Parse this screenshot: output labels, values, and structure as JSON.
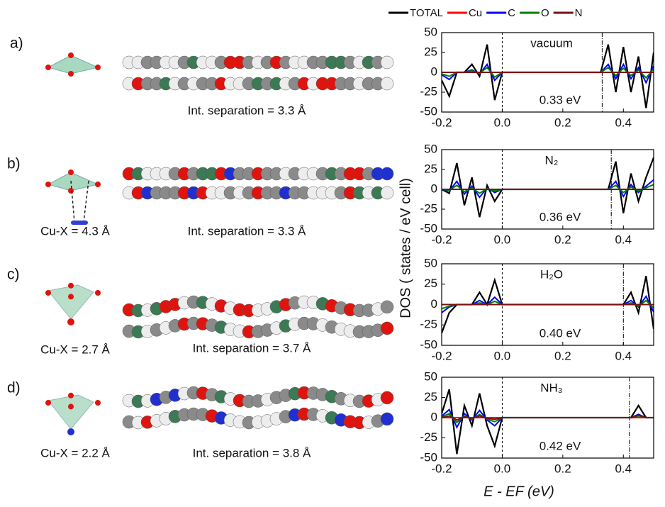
{
  "panels": [
    {
      "label": "a)",
      "int_separation": "Int. separation = 3.3 Å"
    },
    {
      "label": "b)",
      "cu_x": "Cu-X = 4.3 Å",
      "int_separation": "Int. separation = 3.3 Å"
    },
    {
      "label": "c)",
      "cu_x": "Cu-X = 2.7 Å",
      "int_separation": "Int. separation = 3.7 Å"
    },
    {
      "label": "d)",
      "cu_x": "Cu-X = 2.2 Å",
      "int_separation": "Int. separation = 3.8 Å"
    }
  ],
  "ylabel": "DOS ( states / eV cell)",
  "xlabel": "E - EF (eV)",
  "chart_data": [
    {
      "type": "line",
      "note": "vacuum",
      "gap": {
        "value": 0.33,
        "label": "0.33 eV"
      },
      "fermi": 0,
      "xlim": [
        -0.2,
        0.5
      ],
      "ylim": [
        -50,
        50
      ],
      "xticks": [
        -0.2,
        {
          "value": 0,
          "label": "0.0"
        },
        0.2,
        0.4
      ],
      "yticks": [
        50,
        25,
        0,
        -25,
        -50
      ],
      "x": [
        -0.2,
        -0.175,
        -0.15,
        -0.125,
        -0.1,
        -0.075,
        -0.05,
        -0.025,
        0,
        0.025,
        0.05,
        0.075,
        0.1,
        0.125,
        0.15,
        0.175,
        0.2,
        0.225,
        0.25,
        0.275,
        0.3,
        0.325,
        0.35,
        0.375,
        0.4,
        0.425,
        0.45,
        0.475,
        0.5
      ],
      "series": [
        {
          "name": "TOTAL",
          "color": "#000000",
          "values": [
            -10,
            -30,
            0,
            0,
            10,
            -5,
            35,
            -35,
            0,
            0,
            0,
            0,
            0,
            0,
            0,
            0,
            0,
            0,
            0,
            0,
            0,
            0,
            35,
            -25,
            32,
            -25,
            20,
            -45,
            25
          ]
        },
        {
          "name": "Cu",
          "color": "#ff0000",
          "values": [
            0,
            0,
            0,
            0,
            0,
            0,
            0,
            0,
            0,
            0,
            0,
            0,
            0,
            0,
            0,
            0,
            0,
            0,
            0,
            0,
            0,
            0,
            0,
            0,
            0,
            0,
            0,
            0,
            0
          ]
        },
        {
          "name": "C",
          "color": "#0000ff",
          "values": [
            -3,
            -9,
            0,
            0,
            3,
            -2,
            10,
            -10,
            0,
            0,
            0,
            0,
            0,
            0,
            0,
            0,
            0,
            0,
            0,
            0,
            0,
            0,
            10,
            -8,
            10,
            -8,
            6,
            -13,
            8
          ]
        },
        {
          "name": "O",
          "color": "#008000",
          "values": [
            -2,
            -5,
            0,
            0,
            2,
            -1,
            6,
            -6,
            0,
            0,
            0,
            0,
            0,
            0,
            0,
            0,
            0,
            0,
            0,
            0,
            0,
            0,
            6,
            -4,
            5,
            -4,
            3,
            -7,
            4
          ]
        },
        {
          "name": "N",
          "color": "#7b1010",
          "values": [
            0,
            0,
            0,
            0,
            0,
            0,
            0,
            0,
            0,
            0,
            0,
            0,
            0,
            0,
            0,
            0,
            0,
            0,
            0,
            0,
            0,
            0,
            0,
            0,
            0,
            0,
            0,
            0,
            0
          ]
        }
      ]
    },
    {
      "type": "line",
      "note": "N₂",
      "gap": {
        "value": 0.36,
        "label": "0.36 eV"
      },
      "fermi": 0,
      "xlim": [
        -0.2,
        0.5
      ],
      "ylim": [
        -50,
        50
      ],
      "xticks": [
        -0.2,
        {
          "value": 0,
          "label": "0.0"
        },
        0.2,
        0.4
      ],
      "yticks": [
        50,
        25,
        0,
        -25,
        -50
      ],
      "x": [
        -0.2,
        -0.175,
        -0.15,
        -0.125,
        -0.1,
        -0.075,
        -0.05,
        -0.025,
        0,
        0.025,
        0.05,
        0.075,
        0.1,
        0.125,
        0.15,
        0.175,
        0.2,
        0.225,
        0.25,
        0.275,
        0.3,
        0.325,
        0.35,
        0.375,
        0.4,
        0.425,
        0.45,
        0.475,
        0.5
      ],
      "series": [
        {
          "name": "TOTAL",
          "color": "#000000",
          "values": [
            0,
            -5,
            33,
            -20,
            15,
            -35,
            5,
            -15,
            0,
            0,
            0,
            0,
            0,
            0,
            0,
            0,
            0,
            0,
            0,
            0,
            0,
            0,
            0,
            35,
            -30,
            20,
            -15,
            15,
            40
          ]
        },
        {
          "name": "Cu",
          "color": "#ff0000",
          "values": [
            0,
            0,
            0,
            0,
            0,
            0,
            0,
            0,
            0,
            0,
            0,
            0,
            0,
            0,
            0,
            0,
            0,
            0,
            0,
            0,
            0,
            0,
            0,
            0,
            0,
            0,
            0,
            0,
            0
          ]
        },
        {
          "name": "C",
          "color": "#0000ff",
          "values": [
            0,
            -2,
            10,
            -6,
            4,
            -10,
            2,
            -4,
            0,
            0,
            0,
            0,
            0,
            0,
            0,
            0,
            0,
            0,
            0,
            0,
            0,
            0,
            0,
            10,
            -9,
            6,
            -4,
            4,
            12
          ]
        },
        {
          "name": "O",
          "color": "#008000",
          "values": [
            0,
            -1,
            5,
            -3,
            2,
            -5,
            1,
            -2,
            0,
            0,
            0,
            0,
            0,
            0,
            0,
            0,
            0,
            0,
            0,
            0,
            0,
            0,
            0,
            5,
            -4,
            3,
            -2,
            2,
            6
          ]
        },
        {
          "name": "N",
          "color": "#7b1010",
          "values": [
            0,
            0,
            0,
            0,
            0,
            0,
            0,
            0,
            0,
            0,
            0,
            0,
            0,
            0,
            0,
            0,
            0,
            0,
            0,
            0,
            0,
            0,
            0,
            0,
            0,
            0,
            0,
            0,
            0
          ]
        }
      ]
    },
    {
      "type": "line",
      "note": "H₂O",
      "gap": {
        "value": 0.4,
        "label": "0.40 eV"
      },
      "fermi": 0,
      "xlim": [
        -0.2,
        0.5
      ],
      "ylim": [
        -50,
        50
      ],
      "xticks": [
        -0.2,
        {
          "value": 0,
          "label": "0.0"
        },
        0.2,
        0.4
      ],
      "yticks": [
        50,
        25,
        0,
        -25,
        -50
      ],
      "x": [
        -0.2,
        -0.175,
        -0.15,
        -0.125,
        -0.1,
        -0.075,
        -0.05,
        -0.025,
        0,
        0.025,
        0.05,
        0.075,
        0.1,
        0.125,
        0.15,
        0.175,
        0.2,
        0.225,
        0.25,
        0.275,
        0.3,
        0.325,
        0.35,
        0.375,
        0.4,
        0.425,
        0.45,
        0.475,
        0.5
      ],
      "series": [
        {
          "name": "TOTAL",
          "color": "#000000",
          "values": [
            -35,
            -10,
            0,
            0,
            0,
            15,
            0,
            30,
            0,
            0,
            0,
            0,
            0,
            0,
            0,
            0,
            0,
            0,
            0,
            0,
            0,
            0,
            0,
            0,
            0,
            15,
            -10,
            35,
            -30
          ]
        },
        {
          "name": "Cu",
          "color": "#ff0000",
          "values": [
            0,
            0,
            0,
            0,
            0,
            0,
            0,
            0,
            0,
            0,
            0,
            0,
            0,
            0,
            0,
            0,
            0,
            0,
            0,
            0,
            0,
            0,
            0,
            0,
            0,
            0,
            0,
            0,
            0
          ]
        },
        {
          "name": "C",
          "color": "#0000ff",
          "values": [
            -10,
            -3,
            0,
            0,
            0,
            5,
            0,
            9,
            0,
            0,
            0,
            0,
            0,
            0,
            0,
            0,
            0,
            0,
            0,
            0,
            0,
            0,
            0,
            0,
            0,
            5,
            -3,
            10,
            -9
          ]
        },
        {
          "name": "O",
          "color": "#008000",
          "values": [
            -5,
            -2,
            0,
            0,
            0,
            2,
            0,
            4,
            0,
            0,
            0,
            0,
            0,
            0,
            0,
            0,
            0,
            0,
            0,
            0,
            0,
            0,
            0,
            0,
            0,
            2,
            -2,
            5,
            -4
          ]
        },
        {
          "name": "N",
          "color": "#7b1010",
          "values": [
            0,
            0,
            0,
            0,
            0,
            0,
            0,
            0,
            0,
            0,
            0,
            0,
            0,
            0,
            0,
            0,
            0,
            0,
            0,
            0,
            0,
            0,
            0,
            0,
            0,
            0,
            0,
            0,
            0
          ]
        }
      ]
    },
    {
      "type": "line",
      "note": "NH₃",
      "gap": {
        "value": 0.42,
        "label": "0.42 eV"
      },
      "fermi": 0,
      "xlim": [
        -0.2,
        0.5
      ],
      "ylim": [
        -50,
        50
      ],
      "xticks": [
        -0.2,
        {
          "value": 0,
          "label": "0.0"
        },
        0.2,
        0.4
      ],
      "yticks": [
        50,
        25,
        0,
        -25,
        -50
      ],
      "x": [
        -0.2,
        -0.175,
        -0.15,
        -0.125,
        -0.1,
        -0.075,
        -0.05,
        -0.025,
        0,
        0.025,
        0.05,
        0.075,
        0.1,
        0.125,
        0.15,
        0.175,
        0.2,
        0.225,
        0.25,
        0.275,
        0.3,
        0.325,
        0.35,
        0.375,
        0.4,
        0.425,
        0.45,
        0.475,
        0.5
      ],
      "series": [
        {
          "name": "TOTAL",
          "color": "#000000",
          "values": [
            5,
            35,
            -45,
            15,
            -10,
            30,
            -10,
            -35,
            0,
            0,
            0,
            0,
            0,
            0,
            0,
            0,
            0,
            0,
            0,
            0,
            0,
            0,
            0,
            0,
            0,
            0,
            15,
            0,
            0
          ]
        },
        {
          "name": "Cu",
          "color": "#ff0000",
          "values": [
            0,
            0,
            0,
            0,
            0,
            0,
            0,
            0,
            0,
            0,
            0,
            0,
            0,
            0,
            0,
            0,
            0,
            0,
            0,
            0,
            0,
            0,
            0,
            0,
            0,
            0,
            0,
            0,
            0
          ]
        },
        {
          "name": "C",
          "color": "#0000ff",
          "values": [
            2,
            10,
            -12,
            5,
            -3,
            9,
            -3,
            -10,
            0,
            0,
            0,
            0,
            0,
            0,
            0,
            0,
            0,
            0,
            0,
            0,
            0,
            0,
            0,
            0,
            0,
            0,
            4,
            0,
            0
          ]
        },
        {
          "name": "O",
          "color": "#008000",
          "values": [
            1,
            5,
            -6,
            2,
            -2,
            4,
            -2,
            -5,
            0,
            0,
            0,
            0,
            0,
            0,
            0,
            0,
            0,
            0,
            0,
            0,
            0,
            0,
            0,
            0,
            0,
            0,
            2,
            0,
            0
          ]
        },
        {
          "name": "N",
          "color": "#7b1010",
          "values": [
            0,
            2,
            -3,
            1,
            -1,
            2,
            -1,
            -2,
            0,
            0,
            0,
            0,
            0,
            0,
            0,
            0,
            0,
            0,
            0,
            0,
            0,
            0,
            0,
            0,
            0,
            0,
            3,
            0,
            0
          ]
        }
      ]
    }
  ]
}
